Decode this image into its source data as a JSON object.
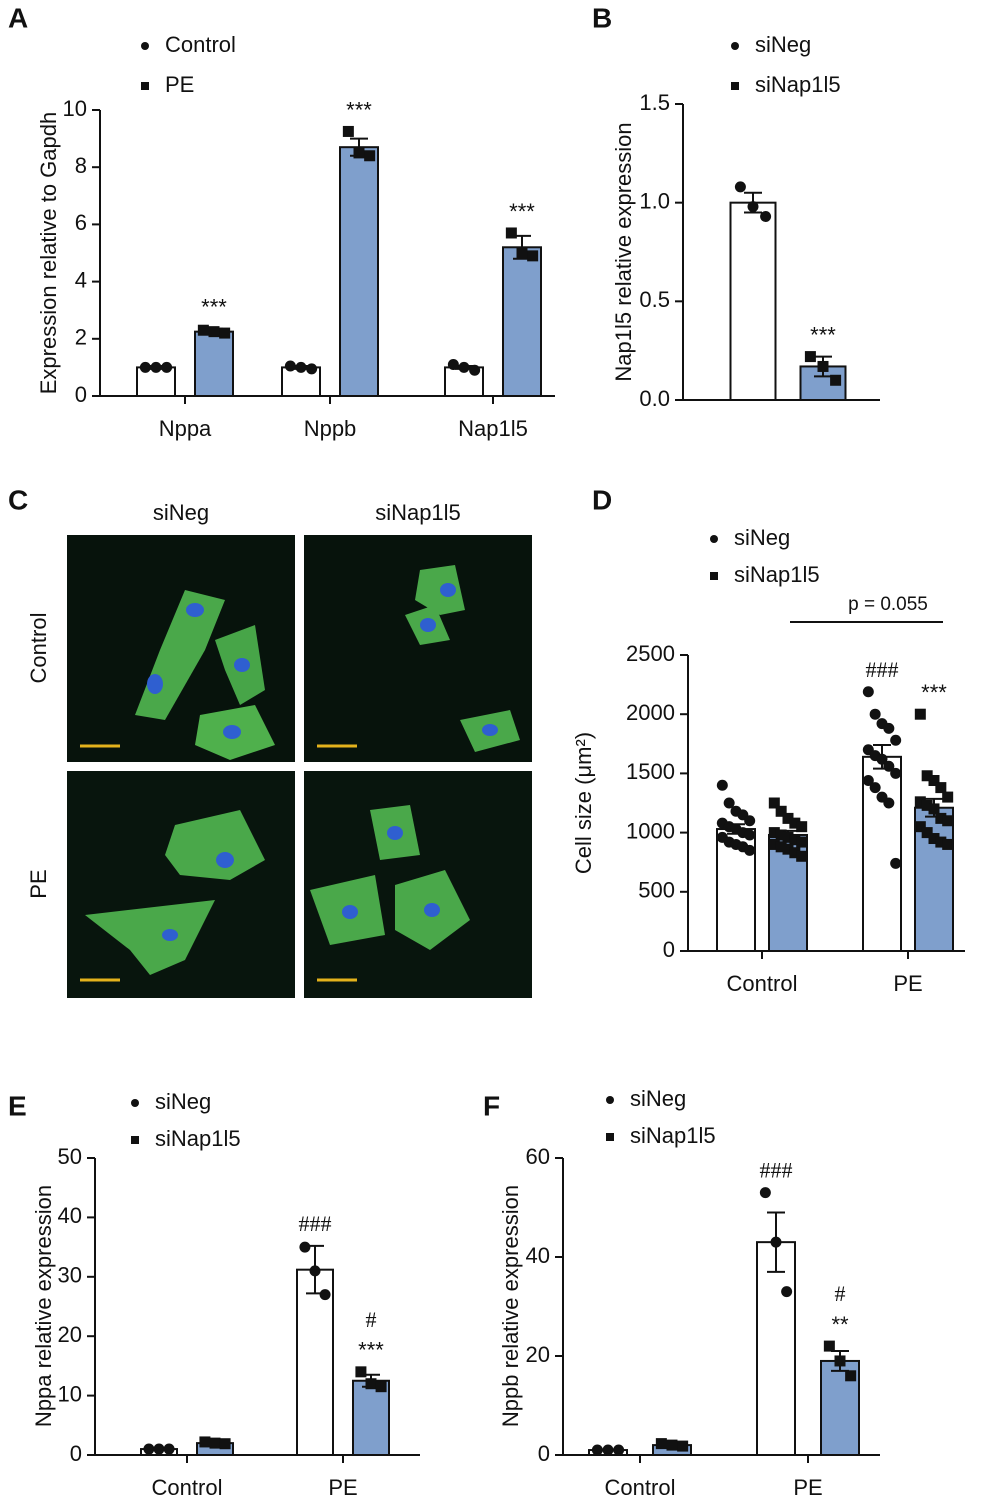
{
  "chart_data": [
    {
      "type": "bar",
      "panel": "A",
      "y_label": "Expression relative to Gapdh",
      "categories": [
        "Nppa",
        "Nppb",
        "Nap1l5"
      ],
      "ylim": [
        0,
        10
      ],
      "yticks": [
        0,
        2,
        4,
        6,
        8,
        10
      ],
      "series": [
        {
          "name": "Control",
          "color": "#ffffff",
          "marker": "circle",
          "values": [
            1.0,
            1.0,
            1.0
          ],
          "errors": [
            0.05,
            0.05,
            0.05
          ],
          "points": [
            [
              1.0,
              1.0,
              1.0
            ],
            [
              1.05,
              1.0,
              0.95
            ],
            [
              1.1,
              1.0,
              0.9
            ]
          ],
          "annotations": [
            null,
            null,
            null
          ]
        },
        {
          "name": "PE",
          "color": "#7f9fcc",
          "marker": "square",
          "values": [
            2.25,
            8.7,
            5.2
          ],
          "errors": [
            0.1,
            0.3,
            0.4
          ],
          "points": [
            [
              2.3,
              2.25,
              2.2
            ],
            [
              9.25,
              8.5,
              8.4
            ],
            [
              5.7,
              5.0,
              4.9
            ]
          ],
          "annotations": [
            [
              "***"
            ],
            [
              "***"
            ],
            [
              "***"
            ]
          ]
        }
      ]
    },
    {
      "type": "bar",
      "panel": "B",
      "y_label": "Nap1l5 relative expression",
      "categories": [
        null
      ],
      "ylim": [
        0,
        1.5
      ],
      "yticks": [
        {
          "value": 0,
          "label": "0.0"
        },
        0.5,
        {
          "value": 1,
          "label": "1.0"
        },
        1.5
      ],
      "series": [
        {
          "name": "siNeg",
          "color": "#ffffff",
          "marker": "circle",
          "values": [
            1.0
          ],
          "errors": [
            0.05
          ],
          "points": [
            [
              1.08,
              0.98,
              0.93
            ]
          ],
          "annotations": [
            null
          ]
        },
        {
          "name": "siNap1l5",
          "color": "#7f9fcc",
          "marker": "square",
          "values": [
            0.17
          ],
          "errors": [
            0.05
          ],
          "points": [
            [
              0.22,
              0.17,
              0.1
            ]
          ],
          "annotations": [
            [
              "***"
            ]
          ]
        }
      ]
    },
    {
      "type": "image_grid",
      "panel": "C",
      "column_labels": [
        "siNeg",
        "siNap1l5"
      ],
      "row_labels": [
        "Control",
        "PE"
      ]
    },
    {
      "type": "bar",
      "panel": "D",
      "y_label": "Cell size (μm²)",
      "categories": [
        "Control",
        "PE"
      ],
      "ylim": [
        0,
        2500
      ],
      "yticks": [
        0,
        500,
        1000,
        1500,
        2000,
        2500
      ],
      "bracket": "p = 0.055",
      "series": [
        {
          "name": "siNeg",
          "color": "#ffffff",
          "marker": "circle",
          "values": [
            1030,
            1640
          ],
          "errors": [
            40,
            100
          ],
          "points": [
            [
              1400,
              1250,
              1180,
              1150,
              1100,
              1080,
              1050,
              1030,
              1000,
              980,
              960,
              920,
              900,
              880,
              850
            ],
            [
              2190,
              2000,
              1920,
              1880,
              1780,
              1700,
              1650,
              1620,
              1560,
              1500,
              1440,
              1380,
              1300,
              1250,
              740
            ]
          ],
          "annotations": [
            null,
            [
              "###"
            ]
          ]
        },
        {
          "name": "siNap1l5",
          "color": "#7f9fcc",
          "marker": "square",
          "values": [
            980,
            1210
          ],
          "errors": [
            35,
            75
          ],
          "points": [
            [
              1250,
              1180,
              1120,
              1080,
              1050,
              1000,
              980,
              960,
              940,
              920,
              900,
              880,
              860,
              830,
              800
            ],
            [
              2000,
              1480,
              1440,
              1380,
              1300,
              1260,
              1230,
              1200,
              1120,
              1100,
              1050,
              1000,
              950,
              920,
              900
            ]
          ],
          "annotations": [
            null,
            [
              "***"
            ]
          ]
        }
      ]
    },
    {
      "type": "bar",
      "panel": "E",
      "y_label": "Nppa relative expression",
      "categories": [
        "Control",
        "PE"
      ],
      "ylim": [
        0,
        50
      ],
      "yticks": [
        0,
        10,
        20,
        30,
        40,
        50
      ],
      "series": [
        {
          "name": "siNeg",
          "color": "#ffffff",
          "marker": "circle",
          "values": [
            1.0,
            31.2
          ],
          "errors": [
            0.1,
            4.0
          ],
          "points": [
            [
              1.0,
              1.0,
              1.0
            ],
            [
              35,
              31,
              27
            ]
          ],
          "annotations": [
            null,
            [
              "###"
            ]
          ]
        },
        {
          "name": "siNap1l5",
          "color": "#7f9fcc",
          "marker": "square",
          "values": [
            2.0,
            12.5
          ],
          "errors": [
            0.2,
            1.0
          ],
          "points": [
            [
              2.2,
              2.0,
              1.9
            ],
            [
              14,
              12,
              11.5
            ]
          ],
          "annotations": [
            null,
            [
              "#",
              "***"
            ]
          ]
        }
      ]
    },
    {
      "type": "bar",
      "panel": "F",
      "y_label": "Nppb relative expression",
      "categories": [
        "Control",
        "PE"
      ],
      "ylim": [
        0,
        60
      ],
      "yticks": [
        0,
        20,
        40,
        60
      ],
      "series": [
        {
          "name": "siNeg",
          "color": "#ffffff",
          "marker": "circle",
          "values": [
            1.0,
            43
          ],
          "errors": [
            0.1,
            6
          ],
          "points": [
            [
              1.0,
              1.0,
              1.0
            ],
            [
              53,
              43,
              33
            ]
          ],
          "annotations": [
            null,
            [
              "###"
            ]
          ]
        },
        {
          "name": "siNap1l5",
          "color": "#7f9fcc",
          "marker": "square",
          "values": [
            2.0,
            19
          ],
          "errors": [
            0.3,
            2
          ],
          "points": [
            [
              2.3,
              2.0,
              1.8
            ],
            [
              22,
              19,
              16
            ]
          ],
          "annotations": [
            null,
            [
              "#",
              "**"
            ]
          ]
        }
      ]
    }
  ]
}
